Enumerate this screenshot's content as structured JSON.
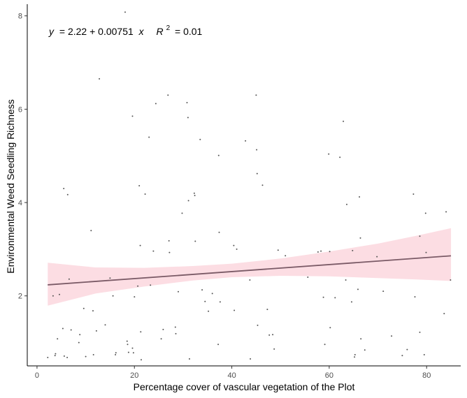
{
  "chart_data": {
    "type": "scatter",
    "title": "",
    "xlabel": "Percentage cover of vascular vegetation of the Plot",
    "ylabel": "Environmental Weed Seedling Richness",
    "xlim": [
      -2,
      87
    ],
    "ylim": [
      0.5,
      8.25
    ],
    "x_ticks": [
      0,
      20,
      40,
      60,
      80
    ],
    "y_ticks": [
      2,
      4,
      6,
      8
    ],
    "x_tick_labels": [
      "0",
      "20",
      "40",
      "60",
      "80"
    ],
    "y_tick_labels": [
      "2",
      "4",
      "6",
      "8"
    ],
    "grid": false,
    "annotation": {
      "lhs": "y",
      "rhs": "= 2.22 + 0.00751",
      "var": "x",
      "r2_label": "R",
      "r2_sup": "2",
      "r2_value": "= 0.01"
    },
    "regression": {
      "intercept": 2.22,
      "slope": 0.00751,
      "x_range": [
        2.2,
        85
      ],
      "ci_lower": [
        [
          2.2,
          1.79
        ],
        [
          12,
          2.05
        ],
        [
          22,
          2.2
        ],
        [
          32,
          2.33
        ],
        [
          40,
          2.4
        ],
        [
          50,
          2.43
        ],
        [
          60,
          2.42
        ],
        [
          70,
          2.38
        ],
        [
          78,
          2.35
        ],
        [
          85,
          2.32
        ]
      ],
      "ci_upper": [
        [
          2.2,
          2.71
        ],
        [
          12,
          2.61
        ],
        [
          22,
          2.6
        ],
        [
          32,
          2.64
        ],
        [
          40,
          2.69
        ],
        [
          50,
          2.8
        ],
        [
          60,
          2.95
        ],
        [
          70,
          3.12
        ],
        [
          78,
          3.29
        ],
        [
          85,
          3.45
        ]
      ]
    },
    "colors": {
      "points": "#555555",
      "line": "#7a5a66",
      "ribbon": "#fcdde3"
    },
    "points": [
      [
        2.2,
        0.68
      ],
      [
        3.3,
        2.0
      ],
      [
        3.7,
        0.72
      ],
      [
        3.8,
        0.76
      ],
      [
        4.2,
        1.08
      ],
      [
        4.6,
        2.03
      ],
      [
        5.3,
        1.3
      ],
      [
        5.5,
        4.3
      ],
      [
        5.6,
        0.71
      ],
      [
        6.2,
        0.68
      ],
      [
        6.3,
        4.17
      ],
      [
        6.6,
        2.36
      ],
      [
        7.0,
        1.27
      ],
      [
        8.6,
        1.0
      ],
      [
        8.8,
        1.17
      ],
      [
        9.6,
        1.73
      ],
      [
        10.0,
        0.7
      ],
      [
        11.1,
        3.4
      ],
      [
        11.5,
        1.68
      ],
      [
        11.6,
        0.74
      ],
      [
        12.2,
        1.25
      ],
      [
        12.8,
        6.65
      ],
      [
        14.0,
        1.38
      ],
      [
        15.0,
        2.38
      ],
      [
        15.6,
        2.0
      ],
      [
        16.1,
        0.74
      ],
      [
        16.2,
        0.78
      ],
      [
        18.1,
        8.08
      ],
      [
        18.5,
        1.03
      ],
      [
        18.6,
        0.96
      ],
      [
        18.8,
        0.79
      ],
      [
        19.6,
        5.85
      ],
      [
        19.6,
        0.88
      ],
      [
        19.8,
        0.78
      ],
      [
        20.0,
        1.98
      ],
      [
        20.7,
        2.21
      ],
      [
        21.0,
        4.36
      ],
      [
        21.2,
        3.08
      ],
      [
        21.3,
        1.23
      ],
      [
        21.4,
        0.63
      ],
      [
        22.2,
        4.18
      ],
      [
        23.0,
        5.4
      ],
      [
        23.3,
        2.23
      ],
      [
        23.9,
        2.96
      ],
      [
        24.4,
        6.12
      ],
      [
        25.5,
        1.08
      ],
      [
        25.9,
        1.28
      ],
      [
        26.9,
        6.3
      ],
      [
        27.1,
        3.18
      ],
      [
        27.2,
        2.93
      ],
      [
        28.4,
        1.33
      ],
      [
        28.5,
        1.19
      ],
      [
        29.0,
        2.09
      ],
      [
        29.8,
        3.77
      ],
      [
        30.8,
        6.14
      ],
      [
        31.0,
        5.82
      ],
      [
        31.1,
        4.04
      ],
      [
        31.3,
        0.65
      ],
      [
        32.3,
        4.2
      ],
      [
        32.4,
        4.15
      ],
      [
        32.5,
        3.17
      ],
      [
        33.5,
        5.35
      ],
      [
        33.9,
        2.13
      ],
      [
        34.5,
        1.88
      ],
      [
        35.2,
        1.67
      ],
      [
        36.0,
        2.05
      ],
      [
        37.2,
        0.96
      ],
      [
        37.3,
        5.01
      ],
      [
        37.4,
        3.36
      ],
      [
        37.6,
        1.87
      ],
      [
        40.4,
        3.08
      ],
      [
        40.5,
        1.69
      ],
      [
        41.0,
        3.0
      ],
      [
        42.8,
        5.32
      ],
      [
        43.7,
        2.34
      ],
      [
        43.8,
        0.65
      ],
      [
        45.0,
        6.3
      ],
      [
        45.1,
        5.13
      ],
      [
        45.2,
        4.62
      ],
      [
        45.3,
        1.37
      ],
      [
        46.3,
        4.37
      ],
      [
        47.3,
        1.71
      ],
      [
        47.7,
        1.16
      ],
      [
        48.4,
        1.17
      ],
      [
        48.7,
        0.86
      ],
      [
        49.5,
        2.98
      ],
      [
        51.0,
        2.86
      ],
      [
        55.6,
        2.4
      ],
      [
        57.7,
        2.94
      ],
      [
        58.3,
        2.96
      ],
      [
        58.8,
        1.97
      ],
      [
        59.1,
        0.96
      ],
      [
        59.9,
        5.04
      ],
      [
        60.1,
        2.95
      ],
      [
        60.2,
        1.32
      ],
      [
        61.2,
        1.96
      ],
      [
        62.2,
        4.97
      ],
      [
        62.9,
        5.74
      ],
      [
        63.4,
        2.34
      ],
      [
        63.6,
        3.96
      ],
      [
        64.6,
        1.87
      ],
      [
        64.8,
        2.97
      ],
      [
        65.2,
        0.69
      ],
      [
        65.3,
        0.74
      ],
      [
        65.9,
        2.14
      ],
      [
        66.2,
        4.12
      ],
      [
        66.4,
        3.24
      ],
      [
        66.5,
        1.08
      ],
      [
        67.3,
        0.84
      ],
      [
        69.8,
        2.84
      ],
      [
        71.1,
        2.1
      ],
      [
        72.8,
        1.14
      ],
      [
        75.0,
        0.72
      ],
      [
        76.0,
        0.85
      ],
      [
        77.3,
        4.18
      ],
      [
        77.6,
        1.98
      ],
      [
        78.6,
        3.28
      ],
      [
        78.6,
        1.22
      ],
      [
        79.5,
        0.74
      ],
      [
        79.8,
        3.77
      ],
      [
        79.9,
        2.93
      ],
      [
        83.6,
        1.62
      ],
      [
        84.0,
        3.8
      ],
      [
        84.9,
        2.34
      ]
    ]
  }
}
